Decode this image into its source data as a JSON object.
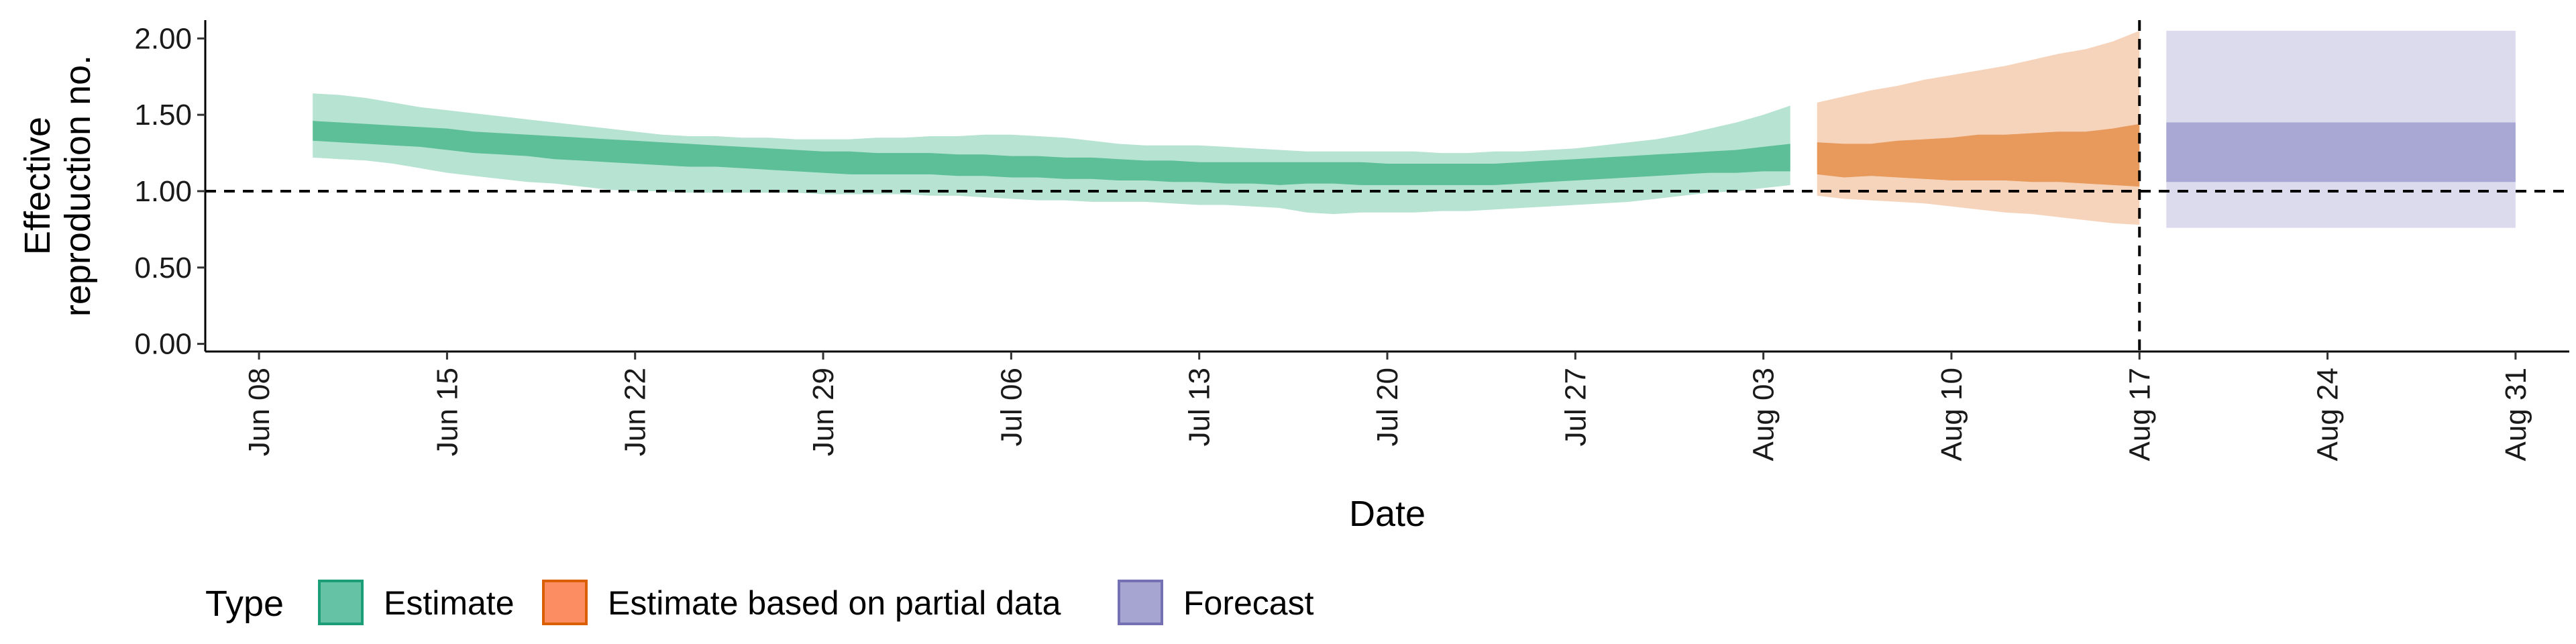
{
  "chart_data": {
    "type": "area",
    "xlabel": "Date",
    "ylabel_lines": [
      "Effective",
      "reproduction no."
    ],
    "ylim": [
      -0.05,
      2.12
    ],
    "yticks": [
      0.0,
      0.5,
      1.0,
      1.5,
      2.0
    ],
    "ytick_labels": [
      "0.00",
      "0.50",
      "1.00",
      "1.50",
      "2.00"
    ],
    "xlim": [
      "2020-06-06",
      "2020-09-02"
    ],
    "xticks": [
      "2020-06-08",
      "2020-06-15",
      "2020-06-22",
      "2020-06-29",
      "2020-07-06",
      "2020-07-13",
      "2020-07-20",
      "2020-07-27",
      "2020-08-03",
      "2020-08-10",
      "2020-08-17",
      "2020-08-24",
      "2020-08-31"
    ],
    "xtick_labels": [
      "Jun 08",
      "Jun 15",
      "Jun 22",
      "Jun 29",
      "Jul 06",
      "Jul 13",
      "Jul 20",
      "Jul 27",
      "Aug 03",
      "Aug 10",
      "Aug 17",
      "Aug 24",
      "Aug 31"
    ],
    "hline": {
      "y": 1.0,
      "style": "dashed",
      "color": "#000000"
    },
    "vline": {
      "x": "2020-08-17",
      "style": "dashed",
      "color": "#000000"
    },
    "grid": false,
    "legend": {
      "title": "Type",
      "position": "bottom-left",
      "entries": [
        {
          "label": "Estimate",
          "fill": "#66c2a5",
          "border": "#1b9e77"
        },
        {
          "label": "Estimate based on partial data",
          "fill": "#fc8d62",
          "border": "#d95f02"
        },
        {
          "label": "Forecast",
          "fill": "#a6a4d0",
          "border": "#7570b3"
        }
      ]
    },
    "series": [
      {
        "name": "Estimate",
        "fill_color": "#66c2a5",
        "inner_color": "#5cbf97",
        "outer_color": "#b7e3d2",
        "x": [
          "2020-06-10",
          "2020-06-11",
          "2020-06-12",
          "2020-06-13",
          "2020-06-14",
          "2020-06-15",
          "2020-06-16",
          "2020-06-17",
          "2020-06-18",
          "2020-06-19",
          "2020-06-20",
          "2020-06-21",
          "2020-06-22",
          "2020-06-23",
          "2020-06-24",
          "2020-06-25",
          "2020-06-26",
          "2020-06-27",
          "2020-06-28",
          "2020-06-29",
          "2020-06-30",
          "2020-07-01",
          "2020-07-02",
          "2020-07-03",
          "2020-07-04",
          "2020-07-05",
          "2020-07-06",
          "2020-07-07",
          "2020-07-08",
          "2020-07-09",
          "2020-07-10",
          "2020-07-11",
          "2020-07-12",
          "2020-07-13",
          "2020-07-14",
          "2020-07-15",
          "2020-07-16",
          "2020-07-17",
          "2020-07-18",
          "2020-07-19",
          "2020-07-20",
          "2020-07-21",
          "2020-07-22",
          "2020-07-23",
          "2020-07-24",
          "2020-07-25",
          "2020-07-26",
          "2020-07-27",
          "2020-07-28",
          "2020-07-29",
          "2020-07-30",
          "2020-07-31",
          "2020-08-01",
          "2020-08-02",
          "2020-08-03",
          "2020-08-04"
        ],
        "lower_90": [
          1.22,
          1.21,
          1.2,
          1.18,
          1.15,
          1.12,
          1.1,
          1.08,
          1.06,
          1.05,
          1.03,
          1.01,
          1.0,
          1.0,
          0.99,
          0.99,
          0.99,
          0.99,
          0.99,
          0.98,
          0.98,
          0.98,
          0.98,
          0.97,
          0.97,
          0.96,
          0.95,
          0.94,
          0.94,
          0.93,
          0.93,
          0.93,
          0.92,
          0.91,
          0.91,
          0.9,
          0.89,
          0.86,
          0.85,
          0.86,
          0.86,
          0.86,
          0.87,
          0.87,
          0.88,
          0.89,
          0.9,
          0.91,
          0.92,
          0.93,
          0.95,
          0.97,
          0.99,
          1.0,
          1.02,
          1.04
        ],
        "lower_50": [
          1.33,
          1.32,
          1.31,
          1.3,
          1.29,
          1.27,
          1.25,
          1.24,
          1.23,
          1.21,
          1.2,
          1.19,
          1.18,
          1.17,
          1.16,
          1.16,
          1.15,
          1.14,
          1.13,
          1.12,
          1.11,
          1.11,
          1.11,
          1.11,
          1.1,
          1.1,
          1.09,
          1.09,
          1.08,
          1.08,
          1.07,
          1.07,
          1.06,
          1.06,
          1.05,
          1.05,
          1.04,
          1.05,
          1.05,
          1.04,
          1.04,
          1.04,
          1.04,
          1.04,
          1.04,
          1.05,
          1.06,
          1.07,
          1.08,
          1.09,
          1.1,
          1.11,
          1.12,
          1.12,
          1.13,
          1.13
        ],
        "upper_50": [
          1.46,
          1.45,
          1.44,
          1.43,
          1.42,
          1.41,
          1.39,
          1.38,
          1.37,
          1.36,
          1.35,
          1.34,
          1.33,
          1.32,
          1.31,
          1.3,
          1.29,
          1.28,
          1.27,
          1.26,
          1.26,
          1.25,
          1.25,
          1.25,
          1.24,
          1.24,
          1.23,
          1.23,
          1.22,
          1.22,
          1.21,
          1.2,
          1.2,
          1.19,
          1.19,
          1.19,
          1.19,
          1.19,
          1.19,
          1.19,
          1.18,
          1.18,
          1.18,
          1.18,
          1.18,
          1.19,
          1.2,
          1.21,
          1.22,
          1.23,
          1.24,
          1.25,
          1.26,
          1.27,
          1.29,
          1.31
        ],
        "upper_90": [
          1.64,
          1.63,
          1.61,
          1.58,
          1.55,
          1.53,
          1.51,
          1.49,
          1.47,
          1.45,
          1.43,
          1.41,
          1.39,
          1.37,
          1.36,
          1.36,
          1.35,
          1.35,
          1.34,
          1.34,
          1.34,
          1.35,
          1.35,
          1.36,
          1.36,
          1.37,
          1.37,
          1.36,
          1.35,
          1.33,
          1.31,
          1.3,
          1.3,
          1.3,
          1.29,
          1.28,
          1.27,
          1.26,
          1.26,
          1.26,
          1.26,
          1.26,
          1.25,
          1.25,
          1.26,
          1.26,
          1.27,
          1.28,
          1.3,
          1.32,
          1.34,
          1.37,
          1.41,
          1.45,
          1.5,
          1.56
        ]
      },
      {
        "name": "Estimate based on partial data",
        "fill_color": "#fc8d62",
        "inner_color": "#e8995c",
        "outer_color": "#f6d4bc",
        "x": [
          "2020-08-05",
          "2020-08-06",
          "2020-08-07",
          "2020-08-08",
          "2020-08-09",
          "2020-08-10",
          "2020-08-11",
          "2020-08-12",
          "2020-08-13",
          "2020-08-14",
          "2020-08-15",
          "2020-08-16",
          "2020-08-17"
        ],
        "lower_90": [
          0.97,
          0.95,
          0.94,
          0.93,
          0.92,
          0.9,
          0.88,
          0.86,
          0.85,
          0.83,
          0.81,
          0.79,
          0.78
        ],
        "lower_50": [
          1.11,
          1.09,
          1.1,
          1.09,
          1.08,
          1.07,
          1.07,
          1.07,
          1.06,
          1.06,
          1.05,
          1.04,
          1.03
        ],
        "upper_50": [
          1.32,
          1.31,
          1.31,
          1.33,
          1.34,
          1.35,
          1.37,
          1.37,
          1.38,
          1.39,
          1.39,
          1.41,
          1.44
        ],
        "upper_90": [
          1.58,
          1.62,
          1.66,
          1.69,
          1.73,
          1.76,
          1.79,
          1.82,
          1.86,
          1.9,
          1.93,
          1.98,
          2.05
        ]
      },
      {
        "name": "Forecast",
        "fill_color": "#a6a4d0",
        "inner_color": "#a9a7d4",
        "outer_color": "#dcdbee",
        "x": [
          "2020-08-18",
          "2020-08-31"
        ],
        "lower_90": [
          0.76,
          0.76
        ],
        "lower_50": [
          1.06,
          1.06
        ],
        "upper_50": [
          1.45,
          1.45
        ],
        "upper_90": [
          2.05,
          2.05
        ]
      }
    ]
  }
}
